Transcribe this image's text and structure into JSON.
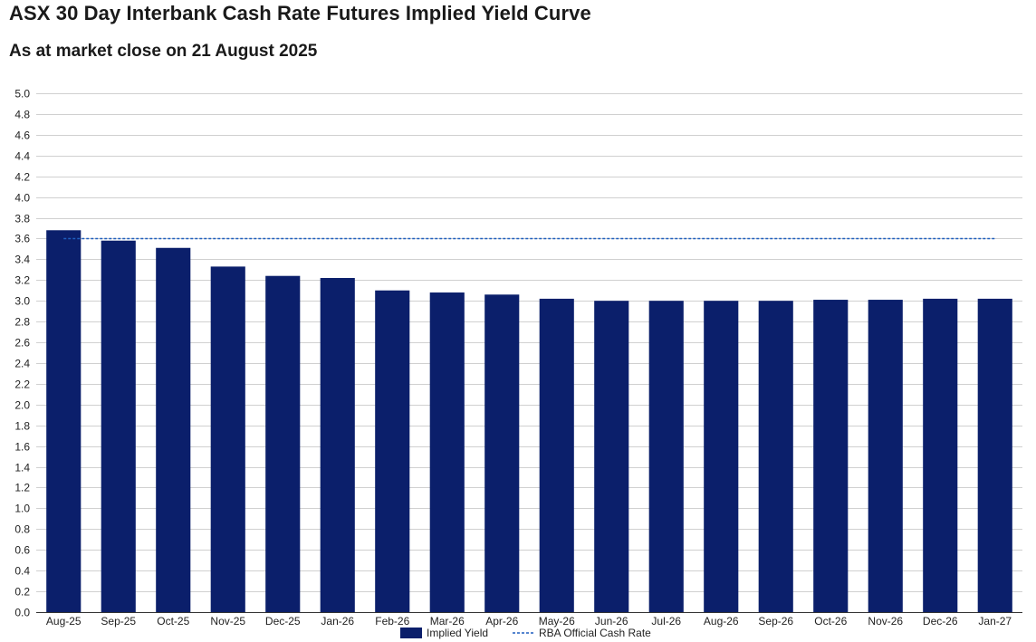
{
  "title": "ASX 30 Day Interbank Cash Rate Futures Implied Yield Curve",
  "subtitle": "As at market close on 21 August 2025",
  "colors": {
    "bar": "#0b1f6b",
    "reference_line": "#1f5fbf",
    "grid": "#d0d0d0",
    "axis": "#333333"
  },
  "chart_data": {
    "type": "bar",
    "categories": [
      "Aug-25",
      "Sep-25",
      "Oct-25",
      "Nov-25",
      "Dec-25",
      "Jan-26",
      "Feb-26",
      "Mar-26",
      "Apr-26",
      "May-26",
      "Jun-26",
      "Jul-26",
      "Aug-26",
      "Sep-26",
      "Oct-26",
      "Nov-26",
      "Dec-26",
      "Jan-27"
    ],
    "series": [
      {
        "name": "Implied Yield",
        "type": "bar",
        "values": [
          3.68,
          3.58,
          3.51,
          3.33,
          3.24,
          3.22,
          3.1,
          3.08,
          3.06,
          3.02,
          3.0,
          3.0,
          3.0,
          3.0,
          3.01,
          3.01,
          3.02,
          3.02
        ]
      },
      {
        "name": "RBA Official Cash Rate",
        "type": "line",
        "style": "dashed",
        "value": 3.6
      }
    ],
    "ylim": [
      0,
      5.0
    ],
    "ytick_step": 0.2,
    "yticks": [
      "0.0",
      "0.2",
      "0.4",
      "0.6",
      "0.8",
      "1.0",
      "1.2",
      "1.4",
      "1.6",
      "1.8",
      "2.0",
      "2.2",
      "2.4",
      "2.6",
      "2.8",
      "3.0",
      "3.2",
      "3.4",
      "3.6",
      "3.8",
      "4.0",
      "4.2",
      "4.4",
      "4.6",
      "4.8",
      "5.0"
    ],
    "xlabel": "",
    "ylabel": "",
    "grid": true,
    "legend_position": "bottom-center"
  }
}
